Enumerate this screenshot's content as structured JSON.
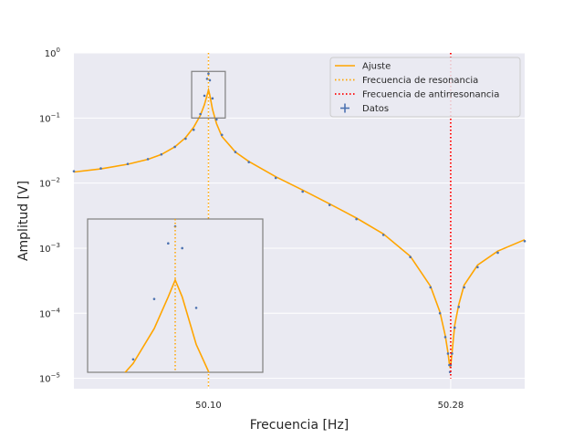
{
  "chart_data": {
    "type": "line",
    "xlabel": "Frecuencia [Hz]",
    "ylabel": "Amplitud [V]",
    "yscale": "log",
    "xlim": [
      50.0,
      50.335
    ],
    "ylim_log10": [
      -5.16,
      0.0
    ],
    "x_ticks": [
      {
        "value": 50.1,
        "label": "50.10"
      },
      {
        "value": 50.28,
        "label": "50.28"
      }
    ],
    "y_ticks": [
      {
        "exp": 0,
        "base": "10",
        "sup": "0"
      },
      {
        "exp": -1,
        "base": "10",
        "sup": "−1"
      },
      {
        "exp": -2,
        "base": "10",
        "sup": "−2"
      },
      {
        "exp": -3,
        "base": "10",
        "sup": "−3"
      },
      {
        "exp": -4,
        "base": "10",
        "sup": "−4"
      },
      {
        "exp": -5,
        "base": "10",
        "sup": "−5"
      }
    ],
    "grid": true,
    "legend_position": "top-right",
    "colors": {
      "fit": "#ffa500",
      "resonance": "#ffa500",
      "antiresonance": "#ff0000",
      "data": "#4c72b0",
      "background": "#eaeaf2",
      "grid": "#ffffff"
    },
    "fit_points": [
      [
        50.0,
        0.0148
      ],
      [
        50.02,
        0.0165
      ],
      [
        50.04,
        0.0195
      ],
      [
        50.055,
        0.0232
      ],
      [
        50.065,
        0.0275
      ],
      [
        50.075,
        0.036
      ],
      [
        50.083,
        0.05
      ],
      [
        50.089,
        0.072
      ],
      [
        50.094,
        0.11
      ],
      [
        50.097,
        0.16
      ],
      [
        50.099,
        0.225
      ],
      [
        50.1,
        0.27
      ],
      [
        50.101,
        0.225
      ],
      [
        50.103,
        0.135
      ],
      [
        50.106,
        0.082
      ],
      [
        50.11,
        0.052
      ],
      [
        50.12,
        0.03
      ],
      [
        50.13,
        0.0215
      ],
      [
        50.15,
        0.0125
      ],
      [
        50.17,
        0.0078
      ],
      [
        50.19,
        0.0048
      ],
      [
        50.21,
        0.0029
      ],
      [
        50.23,
        0.00165
      ],
      [
        50.25,
        0.00075
      ],
      [
        50.265,
        0.00026
      ],
      [
        50.272,
        0.000105
      ],
      [
        50.276,
        4.5e-05
      ],
      [
        50.278,
        2.5e-05
      ],
      [
        50.279,
        1.7e-05
      ],
      [
        50.2795,
        1.5e-05
      ],
      [
        50.28,
        1.55e-05
      ],
      [
        50.281,
        2.5e-05
      ],
      [
        50.283,
        6.5e-05
      ],
      [
        50.286,
        0.000135
      ],
      [
        50.29,
        0.00027
      ],
      [
        50.3,
        0.00055
      ],
      [
        50.315,
        0.0009
      ],
      [
        50.335,
        0.00135
      ]
    ],
    "data_points": [
      [
        50.0,
        0.0152
      ],
      [
        50.02,
        0.0168
      ],
      [
        50.04,
        0.0197
      ],
      [
        50.055,
        0.0233
      ],
      [
        50.065,
        0.0276
      ],
      [
        50.075,
        0.036
      ],
      [
        50.083,
        0.048
      ],
      [
        50.089,
        0.066
      ],
      [
        50.094,
        0.115
      ],
      [
        50.097,
        0.22
      ],
      [
        50.099,
        0.4
      ],
      [
        50.1,
        0.48
      ],
      [
        50.101,
        0.38
      ],
      [
        50.103,
        0.2
      ],
      [
        50.106,
        0.095
      ],
      [
        50.11,
        0.055
      ],
      [
        50.12,
        0.03
      ],
      [
        50.13,
        0.021
      ],
      [
        50.15,
        0.012
      ],
      [
        50.17,
        0.0074
      ],
      [
        50.19,
        0.0046
      ],
      [
        50.21,
        0.0028
      ],
      [
        50.23,
        0.0016
      ],
      [
        50.25,
        0.00073
      ],
      [
        50.265,
        0.00025
      ],
      [
        50.272,
        0.0001
      ],
      [
        50.276,
        4.3e-05
      ],
      [
        50.278,
        2.4e-05
      ],
      [
        50.279,
        1.6e-05
      ],
      [
        50.2795,
        1.25e-05
      ],
      [
        50.28,
        1.6e-05
      ],
      [
        50.281,
        2.4e-05
      ],
      [
        50.283,
        6e-05
      ],
      [
        50.286,
        0.000125
      ],
      [
        50.29,
        0.00025
      ],
      [
        50.3,
        0.00051
      ],
      [
        50.315,
        0.00085
      ],
      [
        50.335,
        0.00128
      ]
    ],
    "resonance_x": 50.1,
    "antiresonance_x": 50.28,
    "inset_zoom_region": {
      "xlim": [
        50.0875,
        50.1125
      ],
      "ylim": [
        0.1,
        0.52
      ]
    },
    "legend": [
      {
        "key": "fit",
        "label": "Ajuste",
        "style": "line"
      },
      {
        "key": "resonance",
        "label": "Frecuencia de resonancia",
        "style": "dotted"
      },
      {
        "key": "antiresonance",
        "label": "Frecuencia de antirresonancia",
        "style": "dotted"
      },
      {
        "key": "data",
        "label": "Datos",
        "style": "cross"
      }
    ]
  }
}
